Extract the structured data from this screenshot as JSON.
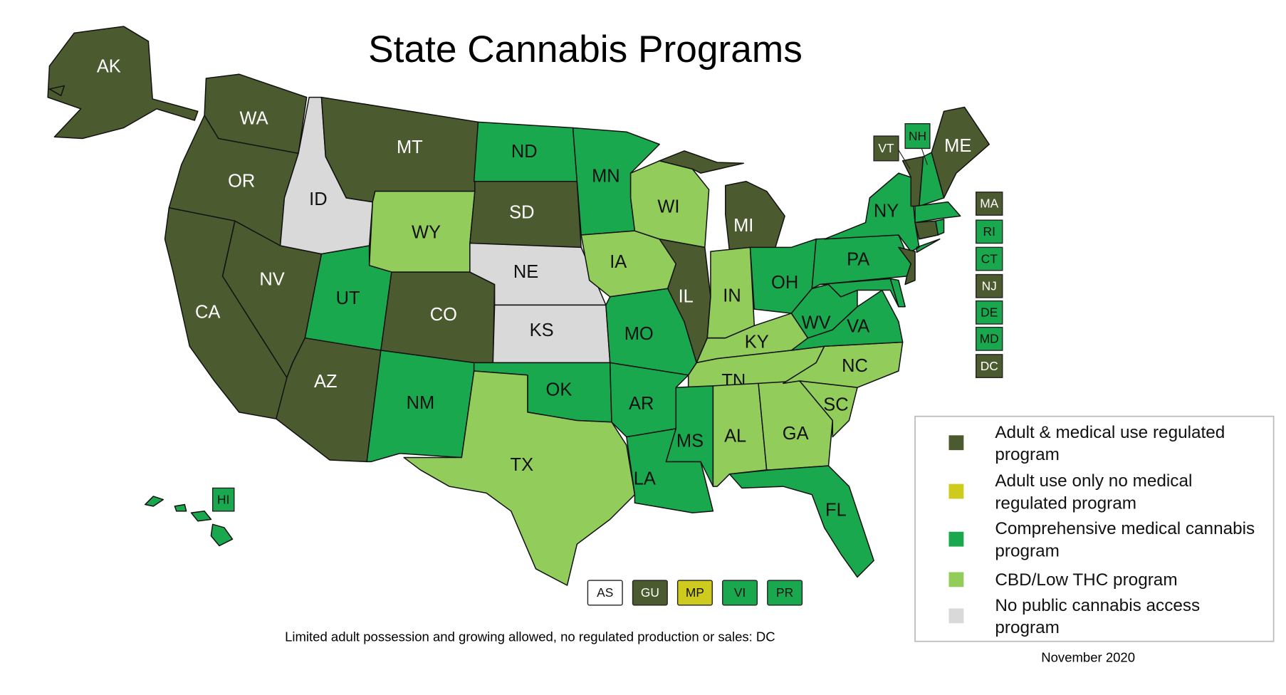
{
  "title": "State Cannabis Programs",
  "states": [
    {
      "code": "AK",
      "color": "#4b5a2f"
    },
    {
      "code": "WA",
      "color": "#4b5a2f"
    },
    {
      "code": "OR",
      "color": "#4b5a2f"
    },
    {
      "code": "CA",
      "color": "#4b5a2f"
    },
    {
      "code": "NV",
      "color": "#4b5a2f"
    },
    {
      "code": "ID",
      "color": "#d9d9d9"
    },
    {
      "code": "MT",
      "color": "#4b5a2f"
    },
    {
      "code": "WY",
      "color": "#92cc5a"
    },
    {
      "code": "UT",
      "color": "#1aa84f"
    },
    {
      "code": "CO",
      "color": "#4b5a2f"
    },
    {
      "code": "AZ",
      "color": "#4b5a2f"
    },
    {
      "code": "NM",
      "color": "#1aa84f"
    },
    {
      "code": "ND",
      "color": "#1aa84f"
    },
    {
      "code": "SD",
      "color": "#4b5a2f"
    },
    {
      "code": "NE",
      "color": "#d9d9d9"
    },
    {
      "code": "KS",
      "color": "#d9d9d9"
    },
    {
      "code": "OK",
      "color": "#1aa84f"
    },
    {
      "code": "TX",
      "color": "#92cc5a"
    },
    {
      "code": "MN",
      "color": "#1aa84f"
    },
    {
      "code": "IA",
      "color": "#92cc5a"
    },
    {
      "code": "MO",
      "color": "#1aa84f"
    },
    {
      "code": "AR",
      "color": "#1aa84f"
    },
    {
      "code": "LA",
      "color": "#1aa84f"
    },
    {
      "code": "WI",
      "color": "#92cc5a"
    },
    {
      "code": "IL",
      "color": "#4b5a2f"
    },
    {
      "code": "MI",
      "color": "#4b5a2f"
    },
    {
      "code": "IN",
      "color": "#92cc5a"
    },
    {
      "code": "OH",
      "color": "#1aa84f"
    },
    {
      "code": "KY",
      "color": "#92cc5a"
    },
    {
      "code": "TN",
      "color": "#92cc5a"
    },
    {
      "code": "MS",
      "color": "#1aa84f"
    },
    {
      "code": "AL",
      "color": "#92cc5a"
    },
    {
      "code": "GA",
      "color": "#92cc5a"
    },
    {
      "code": "FL",
      "color": "#1aa84f"
    },
    {
      "code": "SC",
      "color": "#92cc5a"
    },
    {
      "code": "NC",
      "color": "#92cc5a"
    },
    {
      "code": "VA",
      "color": "#1aa84f"
    },
    {
      "code": "WV",
      "color": "#1aa84f"
    },
    {
      "code": "PA",
      "color": "#1aa84f"
    },
    {
      "code": "NY",
      "color": "#1aa84f"
    },
    {
      "code": "ME",
      "color": "#4b5a2f"
    },
    {
      "color": "#4b5a2f"
    },
    {
      "color": "#1aa84f"
    },
    {
      "color": "#1aa84f"
    },
    {
      "color": "#4b5a2f"
    },
    {
      "color": "#1aa84f"
    },
    {
      "color": "#4b5a2f"
    },
    {
      "color": "#1aa84f"
    },
    {
      "color": "#1aa84f"
    },
    {
      "color": "#1aa84f"
    }
  ],
  "callouts": [
    {
      "code": "VT",
      "color": "#4b5a2f"
    },
    {
      "code": "NH",
      "color": "#1aa84f"
    },
    {
      "code": "MA",
      "color": "#4b5a2f"
    },
    {
      "code": "RI",
      "color": "#1aa84f"
    },
    {
      "code": "CT",
      "color": "#1aa84f"
    },
    {
      "code": "NJ",
      "color": "#4b5a2f"
    },
    {
      "code": "DE",
      "color": "#1aa84f"
    },
    {
      "code": "MD",
      "color": "#1aa84f"
    },
    {
      "code": "DC",
      "color": "#4b5a2f"
    },
    {
      "code": "HI",
      "color": "#1aa84f"
    }
  ],
  "territories": [
    {
      "code": "AS",
      "color": "#ffffff"
    },
    {
      "code": "GU",
      "color": "#4b5a2f"
    },
    {
      "code": "MP",
      "color": "#cfcb1e"
    },
    {
      "code": "VI",
      "color": "#1aa84f"
    },
    {
      "code": "PR",
      "color": "#1aa84f"
    }
  ],
  "legend": [
    {
      "label": "Adult & medical use regulated program",
      "color": "#4b5a2f"
    },
    {
      "label": "Adult use only no medical regulated program",
      "color": "#cfcb1e"
    },
    {
      "label": "Comprehensive medical cannabis program",
      "color": "#1aa84f"
    },
    {
      "label": "CBD/Low THC program",
      "color": "#92cc5a"
    },
    {
      "label": "No public cannabis access program",
      "color": "#d9d9d9"
    }
  ],
  "footnote": "Limited adult possession and growing allowed, no regulated production or sales: DC",
  "date": "November 2020"
}
